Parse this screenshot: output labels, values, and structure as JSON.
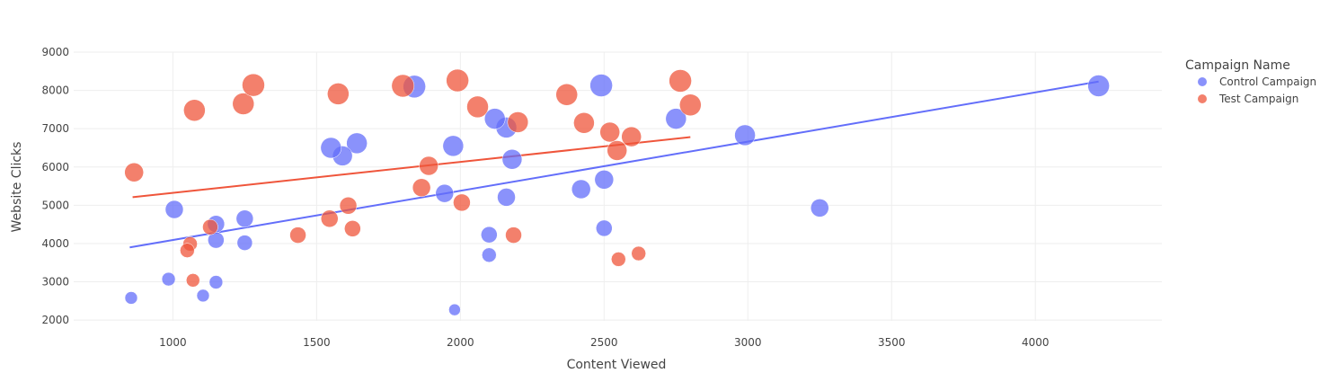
{
  "chart_data": {
    "type": "scatter",
    "xlabel": "Content Viewed",
    "ylabel": "Website Clicks",
    "xlim": [
      655,
      4440
    ],
    "ylim": [
      1980,
      9000
    ],
    "x_ticks": [
      1000,
      1500,
      2000,
      2500,
      3000,
      3500,
      4000
    ],
    "y_ticks": [
      2000,
      3000,
      4000,
      5000,
      6000,
      7000,
      8000,
      9000
    ],
    "grid": true,
    "legend": {
      "title": "Campaign Name",
      "placement": "top-right"
    },
    "series": [
      {
        "name": "Control Campaign",
        "color": "#636efa",
        "points": [
          {
            "x": 4220,
            "y": 8120,
            "r": 12
          },
          {
            "x": 3250,
            "y": 4930,
            "r": 10
          },
          {
            "x": 2990,
            "y": 6830,
            "r": 11.5
          },
          {
            "x": 2750,
            "y": 7260,
            "r": 11.5
          },
          {
            "x": 2490,
            "y": 8130,
            "r": 12.5
          },
          {
            "x": 2500,
            "y": 5670,
            "r": 10.5
          },
          {
            "x": 2420,
            "y": 5420,
            "r": 10.5
          },
          {
            "x": 2500,
            "y": 4400,
            "r": 9
          },
          {
            "x": 2180,
            "y": 6200,
            "r": 11
          },
          {
            "x": 2160,
            "y": 7030,
            "r": 11.5
          },
          {
            "x": 2120,
            "y": 7260,
            "r": 11.5
          },
          {
            "x": 2160,
            "y": 5210,
            "r": 10
          },
          {
            "x": 2100,
            "y": 4230,
            "r": 9
          },
          {
            "x": 2100,
            "y": 3700,
            "r": 8
          },
          {
            "x": 1980,
            "y": 2270,
            "r": 6.5
          },
          {
            "x": 1975,
            "y": 6550,
            "r": 11.5
          },
          {
            "x": 1945,
            "y": 5310,
            "r": 10
          },
          {
            "x": 1840,
            "y": 8100,
            "r": 12.5
          },
          {
            "x": 1640,
            "y": 6620,
            "r": 11.5
          },
          {
            "x": 1590,
            "y": 6290,
            "r": 11
          },
          {
            "x": 1550,
            "y": 6500,
            "r": 11.5
          },
          {
            "x": 1250,
            "y": 4650,
            "r": 9.5
          },
          {
            "x": 1250,
            "y": 4020,
            "r": 8.5
          },
          {
            "x": 1150,
            "y": 4510,
            "r": 9.5
          },
          {
            "x": 1150,
            "y": 4090,
            "r": 9
          },
          {
            "x": 1150,
            "y": 2990,
            "r": 7.5
          },
          {
            "x": 1105,
            "y": 2640,
            "r": 7
          },
          {
            "x": 1005,
            "y": 4890,
            "r": 10
          },
          {
            "x": 985,
            "y": 3070,
            "r": 7.5
          },
          {
            "x": 855,
            "y": 2580,
            "r": 7
          }
        ],
        "trendline": [
          [
            850,
            3900
          ],
          [
            4220,
            8230
          ]
        ]
      },
      {
        "name": "Test Campaign",
        "color": "#ef553b",
        "points": [
          {
            "x": 865,
            "y": 5860,
            "r": 10.5
          },
          {
            "x": 1075,
            "y": 7480,
            "r": 12
          },
          {
            "x": 1245,
            "y": 7650,
            "r": 12
          },
          {
            "x": 1280,
            "y": 8140,
            "r": 12.5
          },
          {
            "x": 1060,
            "y": 3990,
            "r": 8
          },
          {
            "x": 1050,
            "y": 3820,
            "r": 8
          },
          {
            "x": 1070,
            "y": 3040,
            "r": 7.5
          },
          {
            "x": 1130,
            "y": 4430,
            "r": 8.5
          },
          {
            "x": 1435,
            "y": 4220,
            "r": 9
          },
          {
            "x": 1545,
            "y": 4650,
            "r": 9.5
          },
          {
            "x": 1610,
            "y": 4990,
            "r": 9.5
          },
          {
            "x": 1625,
            "y": 4390,
            "r": 9
          },
          {
            "x": 1575,
            "y": 7910,
            "r": 12
          },
          {
            "x": 1800,
            "y": 8120,
            "r": 12.5
          },
          {
            "x": 1865,
            "y": 5460,
            "r": 10
          },
          {
            "x": 1890,
            "y": 6030,
            "r": 10.5
          },
          {
            "x": 1990,
            "y": 8260,
            "r": 12.5
          },
          {
            "x": 2005,
            "y": 5070,
            "r": 9.5
          },
          {
            "x": 2060,
            "y": 7570,
            "r": 12
          },
          {
            "x": 2200,
            "y": 7170,
            "r": 11.5
          },
          {
            "x": 2185,
            "y": 4220,
            "r": 9
          },
          {
            "x": 2370,
            "y": 7890,
            "r": 12
          },
          {
            "x": 2430,
            "y": 7150,
            "r": 11.5
          },
          {
            "x": 2520,
            "y": 6910,
            "r": 11
          },
          {
            "x": 2545,
            "y": 6430,
            "r": 11
          },
          {
            "x": 2595,
            "y": 6790,
            "r": 11
          },
          {
            "x": 2550,
            "y": 3590,
            "r": 8
          },
          {
            "x": 2620,
            "y": 3740,
            "r": 8
          },
          {
            "x": 2765,
            "y": 8250,
            "r": 12.5
          },
          {
            "x": 2800,
            "y": 7620,
            "r": 12
          }
        ],
        "trendline": [
          [
            860,
            5210
          ],
          [
            2800,
            6780
          ]
        ]
      }
    ]
  }
}
